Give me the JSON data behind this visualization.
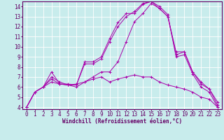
{
  "xlabel": "Windchill (Refroidissement éolien,°C)",
  "background_color": "#c8ecec",
  "grid_color": "#ffffff",
  "line_color": "#aa00aa",
  "xlim": [
    -0.5,
    23.5
  ],
  "ylim": [
    3.8,
    14.5
  ],
  "xticks": [
    0,
    1,
    2,
    3,
    4,
    5,
    6,
    7,
    8,
    9,
    10,
    11,
    12,
    13,
    14,
    15,
    16,
    17,
    18,
    19,
    20,
    21,
    22,
    23
  ],
  "yticks": [
    4,
    5,
    6,
    7,
    8,
    9,
    10,
    11,
    12,
    13,
    14
  ],
  "series": [
    [
      4.0,
      5.5,
      6.0,
      7.0,
      6.5,
      6.2,
      6.2,
      8.5,
      8.5,
      9.0,
      10.8,
      12.4,
      13.3,
      13.3,
      14.2,
      14.5,
      13.8,
      13.0,
      9.2,
      9.5,
      7.5,
      6.3,
      5.8,
      4.2
    ],
    [
      4.0,
      5.5,
      6.0,
      7.5,
      6.3,
      6.3,
      6.2,
      8.3,
      8.3,
      8.8,
      10.5,
      12.0,
      13.0,
      13.5,
      14.3,
      14.5,
      14.0,
      13.2,
      9.0,
      9.2,
      7.3,
      6.0,
      5.5,
      4.0
    ],
    [
      4.0,
      5.5,
      6.0,
      6.8,
      6.3,
      6.2,
      6.0,
      6.5,
      7.0,
      7.5,
      7.5,
      8.5,
      10.5,
      12.5,
      13.3,
      14.3,
      13.8,
      13.0,
      9.5,
      9.5,
      7.5,
      6.5,
      5.8,
      4.5
    ],
    [
      4.0,
      5.5,
      6.0,
      6.5,
      6.3,
      6.2,
      6.3,
      6.5,
      6.8,
      7.0,
      6.5,
      6.8,
      7.0,
      7.2,
      7.0,
      7.0,
      6.5,
      6.2,
      6.0,
      5.8,
      5.5,
      5.0,
      4.8,
      4.0
    ]
  ],
  "tick_fontsize": 5.5,
  "xlabel_fontsize": 5.5
}
